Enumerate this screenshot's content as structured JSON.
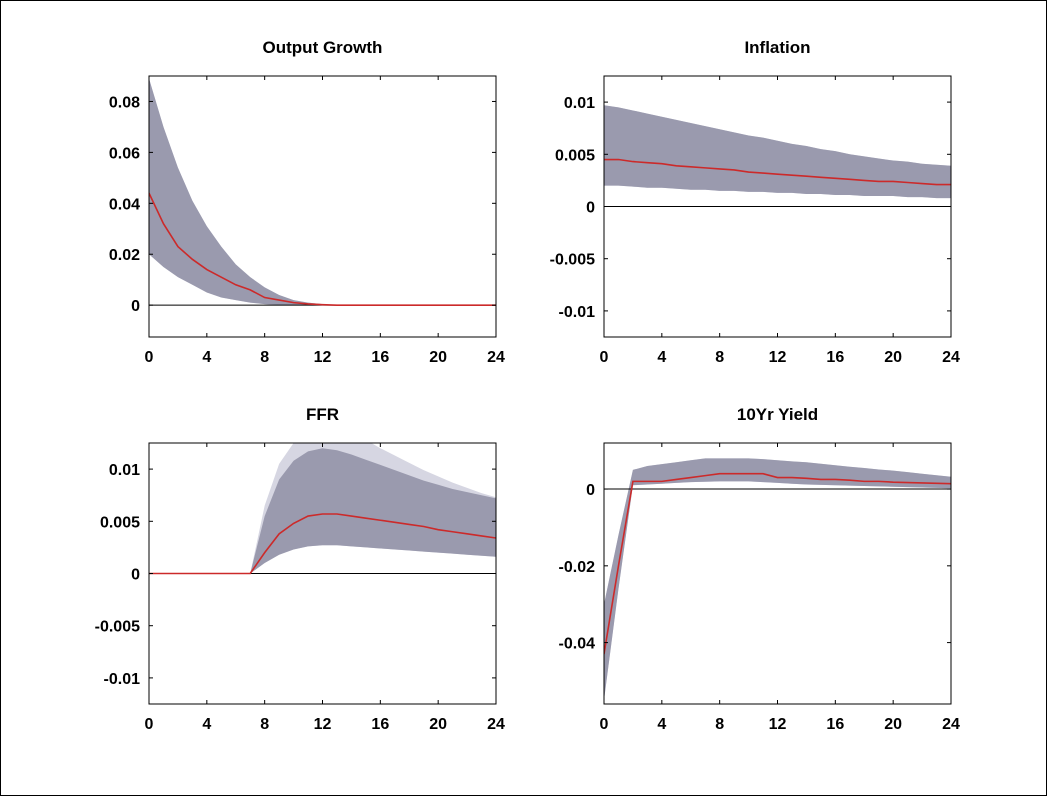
{
  "colors": {
    "band_outer": "#d6d6e2",
    "band_inner": "#9a9aae",
    "median_line": "#cc2a2a",
    "zero_line": "#000000",
    "axes": "#000000"
  },
  "chart_data": [
    {
      "type": "area",
      "title": "Output Growth",
      "xlabel": "",
      "ylabel": "",
      "xlim": [
        0,
        24
      ],
      "ylim": [
        -0.0125,
        0.09
      ],
      "xticks": [
        0,
        4,
        8,
        12,
        16,
        20,
        24
      ],
      "xtick_labels": [
        "0",
        "4",
        "8",
        "12",
        "16",
        "20",
        "24"
      ],
      "yticks": [
        0,
        0.02,
        0.04,
        0.06,
        0.08
      ],
      "ytick_labels": [
        "0",
        "0.02",
        "0.04",
        "0.06",
        "0.08"
      ],
      "grid": false,
      "zero_line": true,
      "x": [
        0,
        1,
        2,
        3,
        4,
        5,
        6,
        7,
        8,
        9,
        10,
        11,
        12,
        13,
        14,
        15,
        16,
        17,
        18,
        19,
        20,
        21,
        22,
        23,
        24
      ],
      "median": [
        0.044,
        0.032,
        0.023,
        0.018,
        0.014,
        0.011,
        0.008,
        0.006,
        0.003,
        0.002,
        0.001,
        0.0005,
        0.0002,
        0,
        0,
        0,
        0,
        0,
        0,
        0,
        0,
        0,
        0,
        0,
        0
      ],
      "band_outer": {
        "upper": [
          0.089,
          0.07,
          0.054,
          0.041,
          0.031,
          0.023,
          0.016,
          0.011,
          0.007,
          0.004,
          0.002,
          0.001,
          0.0004,
          0.0001,
          0,
          0,
          0,
          0,
          0,
          0,
          0,
          0,
          0,
          0,
          0
        ],
        "lower": [
          0.02,
          0.015,
          0.011,
          0.008,
          0.005,
          0.003,
          0.002,
          0.001,
          0.0004,
          0,
          0,
          0,
          0,
          0,
          0,
          0,
          0,
          0,
          0,
          0,
          0,
          0,
          0,
          0,
          0
        ]
      },
      "band_inner": {
        "upper": [
          0.089,
          0.07,
          0.054,
          0.041,
          0.031,
          0.023,
          0.016,
          0.011,
          0.007,
          0.004,
          0.002,
          0.001,
          0.0004,
          0.0001,
          0,
          0,
          0,
          0,
          0,
          0,
          0,
          0,
          0,
          0,
          0
        ],
        "lower": [
          0.02,
          0.015,
          0.011,
          0.008,
          0.005,
          0.003,
          0.002,
          0.001,
          0.0004,
          0,
          0,
          0,
          0,
          0,
          0,
          0,
          0,
          0,
          0,
          0,
          0,
          0,
          0,
          0,
          0
        ]
      }
    },
    {
      "type": "area",
      "title": "Inflation",
      "xlabel": "",
      "ylabel": "",
      "xlim": [
        0,
        24
      ],
      "ylim": [
        -0.0125,
        0.0125
      ],
      "xticks": [
        0,
        4,
        8,
        12,
        16,
        20,
        24
      ],
      "xtick_labels": [
        "0",
        "4",
        "8",
        "12",
        "16",
        "20",
        "24"
      ],
      "yticks": [
        -0.01,
        -0.005,
        0,
        0.005,
        0.01
      ],
      "ytick_labels": [
        "-0.01",
        "-0.005",
        "0",
        "0.005",
        "0.01"
      ],
      "grid": false,
      "zero_line": true,
      "x": [
        0,
        1,
        2,
        3,
        4,
        5,
        6,
        7,
        8,
        9,
        10,
        11,
        12,
        13,
        14,
        15,
        16,
        17,
        18,
        19,
        20,
        21,
        22,
        23,
        24
      ],
      "median": [
        0.0045,
        0.0045,
        0.0043,
        0.0042,
        0.0041,
        0.0039,
        0.0038,
        0.0037,
        0.0036,
        0.0035,
        0.0033,
        0.0032,
        0.0031,
        0.003,
        0.0029,
        0.0028,
        0.0027,
        0.0026,
        0.0025,
        0.0024,
        0.0024,
        0.0023,
        0.0022,
        0.0021,
        0.0021
      ],
      "band_outer": {
        "upper": [
          0.0097,
          0.0095,
          0.0092,
          0.0089,
          0.0086,
          0.0083,
          0.008,
          0.0077,
          0.0074,
          0.0071,
          0.0068,
          0.0066,
          0.0063,
          0.006,
          0.0058,
          0.0055,
          0.0053,
          0.005,
          0.0048,
          0.0046,
          0.0044,
          0.0043,
          0.0041,
          0.004,
          0.0039
        ],
        "lower": [
          0.002,
          0.002,
          0.0019,
          0.0018,
          0.0018,
          0.0017,
          0.0016,
          0.0016,
          0.0015,
          0.0015,
          0.0014,
          0.0014,
          0.0013,
          0.0013,
          0.0012,
          0.0012,
          0.0011,
          0.0011,
          0.001,
          0.001,
          0.001,
          0.0009,
          0.0009,
          0.0008,
          0.0008
        ]
      },
      "band_inner": {
        "upper": [
          0.0097,
          0.0095,
          0.0092,
          0.0089,
          0.0086,
          0.0083,
          0.008,
          0.0077,
          0.0074,
          0.0071,
          0.0068,
          0.0066,
          0.0063,
          0.006,
          0.0058,
          0.0055,
          0.0053,
          0.005,
          0.0048,
          0.0046,
          0.0044,
          0.0043,
          0.0041,
          0.004,
          0.0039
        ],
        "lower": [
          0.002,
          0.002,
          0.0019,
          0.0018,
          0.0018,
          0.0017,
          0.0016,
          0.0016,
          0.0015,
          0.0015,
          0.0014,
          0.0014,
          0.0013,
          0.0013,
          0.0012,
          0.0012,
          0.0011,
          0.0011,
          0.001,
          0.001,
          0.001,
          0.0009,
          0.0009,
          0.0008,
          0.0008
        ]
      }
    },
    {
      "type": "area",
      "title": "FFR",
      "xlabel": "",
      "ylabel": "",
      "xlim": [
        0,
        24
      ],
      "ylim": [
        -0.0125,
        0.0125
      ],
      "xticks": [
        0,
        4,
        8,
        12,
        16,
        20,
        24
      ],
      "xtick_labels": [
        "0",
        "4",
        "8",
        "12",
        "16",
        "20",
        "24"
      ],
      "yticks": [
        -0.01,
        -0.005,
        0,
        0.005,
        0.01
      ],
      "ytick_labels": [
        "-0.01",
        "-0.005",
        "0",
        "0.005",
        "0.01"
      ],
      "grid": false,
      "zero_line": true,
      "x": [
        0,
        1,
        2,
        3,
        4,
        5,
        6,
        7,
        8,
        9,
        10,
        11,
        12,
        13,
        14,
        15,
        16,
        17,
        18,
        19,
        20,
        21,
        22,
        23,
        24
      ],
      "median": [
        0,
        0,
        0,
        0,
        0,
        0,
        0,
        0,
        0.002,
        0.0038,
        0.0048,
        0.0055,
        0.0057,
        0.0057,
        0.0055,
        0.0053,
        0.0051,
        0.0049,
        0.0047,
        0.0045,
        0.0042,
        0.004,
        0.0038,
        0.0036,
        0.0034
      ],
      "band_outer": {
        "upper": [
          0,
          0,
          0,
          0,
          0,
          0,
          0,
          0,
          0.0065,
          0.0105,
          0.0125,
          0.0138,
          0.0142,
          0.014,
          0.0135,
          0.0128,
          0.012,
          0.0113,
          0.0106,
          0.0099,
          0.0093,
          0.0087,
          0.0082,
          0.0077,
          0.0073
        ],
        "lower": [
          0,
          0,
          0,
          0,
          0,
          0,
          0,
          0,
          0.001,
          0.0018,
          0.0023,
          0.0026,
          0.0027,
          0.0027,
          0.0026,
          0.0025,
          0.0024,
          0.0023,
          0.0022,
          0.0021,
          0.002,
          0.0019,
          0.0018,
          0.0017,
          0.0016
        ]
      },
      "band_inner": {
        "upper": [
          0,
          0,
          0,
          0,
          0,
          0,
          0,
          0,
          0.0055,
          0.009,
          0.0108,
          0.0117,
          0.012,
          0.0118,
          0.0114,
          0.0109,
          0.0104,
          0.0099,
          0.0094,
          0.0089,
          0.0085,
          0.0081,
          0.0078,
          0.0075,
          0.0072
        ],
        "lower": [
          0,
          0,
          0,
          0,
          0,
          0,
          0,
          0,
          0.001,
          0.0018,
          0.0023,
          0.0026,
          0.0027,
          0.0027,
          0.0026,
          0.0025,
          0.0024,
          0.0023,
          0.0022,
          0.0021,
          0.002,
          0.0019,
          0.0018,
          0.0017,
          0.0016
        ]
      }
    },
    {
      "type": "area",
      "title": "10Yr Yield",
      "xlabel": "",
      "ylabel": "",
      "xlim": [
        0,
        24
      ],
      "ylim": [
        -0.056,
        0.012
      ],
      "xticks": [
        0,
        4,
        8,
        12,
        16,
        20,
        24
      ],
      "xtick_labels": [
        "0",
        "4",
        "8",
        "12",
        "16",
        "20",
        "24"
      ],
      "yticks": [
        -0.04,
        -0.02,
        0
      ],
      "ytick_labels": [
        "-0.04",
        "-0.02",
        "0"
      ],
      "grid": false,
      "zero_line": true,
      "x": [
        0,
        1,
        2,
        3,
        4,
        5,
        6,
        7,
        8,
        9,
        10,
        11,
        12,
        13,
        14,
        15,
        16,
        17,
        18,
        19,
        20,
        21,
        22,
        23,
        24
      ],
      "median": [
        -0.043,
        -0.02,
        0.002,
        0.002,
        0.002,
        0.0025,
        0.003,
        0.0035,
        0.004,
        0.004,
        0.004,
        0.004,
        0.003,
        0.003,
        0.0028,
        0.0025,
        0.0025,
        0.0023,
        0.002,
        0.002,
        0.0018,
        0.0017,
        0.0016,
        0.0015,
        0.0014
      ],
      "band_outer": {
        "upper": [
          -0.03,
          -0.012,
          0.005,
          0.006,
          0.0065,
          0.007,
          0.0075,
          0.008,
          0.008,
          0.008,
          0.008,
          0.0078,
          0.0075,
          0.0072,
          0.007,
          0.0066,
          0.0062,
          0.0058,
          0.0055,
          0.0051,
          0.0048,
          0.0044,
          0.004,
          0.0036,
          0.0032
        ],
        "lower": [
          -0.055,
          -0.026,
          0.001,
          0.0012,
          0.0014,
          0.0016,
          0.0018,
          0.0019,
          0.002,
          0.002,
          0.002,
          0.0018,
          0.0016,
          0.0014,
          0.0012,
          0.0011,
          0.001,
          0.0009,
          0.0008,
          0.0007,
          0.0006,
          0.0005,
          0.0004,
          0.0003,
          0.0002
        ]
      },
      "band_inner": {
        "upper": [
          -0.03,
          -0.012,
          0.005,
          0.006,
          0.0065,
          0.007,
          0.0075,
          0.008,
          0.008,
          0.008,
          0.008,
          0.0078,
          0.0075,
          0.0072,
          0.007,
          0.0066,
          0.0062,
          0.0058,
          0.0055,
          0.0051,
          0.0048,
          0.0044,
          0.004,
          0.0036,
          0.0032
        ],
        "lower": [
          -0.055,
          -0.026,
          0.001,
          0.0012,
          0.0014,
          0.0016,
          0.0018,
          0.0019,
          0.002,
          0.002,
          0.002,
          0.0018,
          0.0016,
          0.0014,
          0.0012,
          0.0011,
          0.001,
          0.0009,
          0.0008,
          0.0007,
          0.0006,
          0.0005,
          0.0004,
          0.0003,
          0.0002
        ]
      }
    }
  ]
}
